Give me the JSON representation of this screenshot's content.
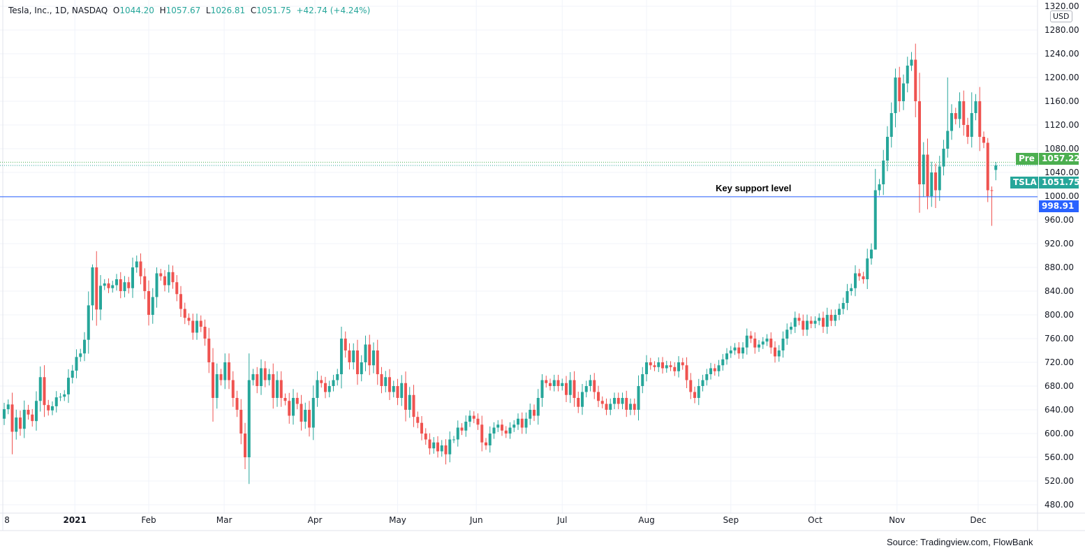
{
  "header": {
    "symbol": "Tesla, Inc., 1D, NASDAQ",
    "o_label": "O",
    "o": "1044.20",
    "h_label": "H",
    "h": "1057.67",
    "l_label": "L",
    "l": "1026.81",
    "c_label": "C",
    "c": "1051.75",
    "change": "+42.74 (+4.24%)"
  },
  "currency": "USD",
  "source": "Source: Tradingview.com, FlowBank",
  "annotation": "Key support level",
  "colors": {
    "up": "#26a69a",
    "down": "#ef5350",
    "support": "#2962ff",
    "pre": "#4caf50",
    "grid": "#f0f3fa"
  },
  "chart_data": {
    "type": "candlestick",
    "title": "Tesla, Inc., 1D, NASDAQ",
    "ylim": [
      460,
      1330
    ],
    "y_ticks": [
      "480.00",
      "520.00",
      "560.00",
      "600.00",
      "640.00",
      "680.00",
      "720.00",
      "760.00",
      "800.00",
      "840.00",
      "880.00",
      "920.00",
      "960.00",
      "1000.00",
      "1040.00",
      "1080.00",
      "1120.00",
      "1160.00",
      "1200.00",
      "1240.00",
      "1280.00",
      "1320.00"
    ],
    "x_ticks": [
      "8",
      "2021",
      "Feb",
      "Mar",
      "Apr",
      "May",
      "Jun",
      "Jul",
      "Aug",
      "Sep",
      "Oct",
      "Nov",
      "Dec"
    ],
    "close": [
      641,
      649,
      603,
      627,
      608,
      640,
      632,
      621,
      655,
      695,
      648,
      639,
      646,
      661,
      662,
      666,
      694,
      706,
      729,
      735,
      758,
      816,
      880,
      809,
      849,
      853,
      845,
      850,
      860,
      840,
      855,
      845,
      880,
      890,
      865,
      840,
      800,
      830,
      870,
      865,
      850,
      872,
      855,
      835,
      810,
      795,
      790,
      770,
      790,
      780,
      760,
      720,
      660,
      700,
      690,
      720,
      690,
      660,
      640,
      600,
      560,
      690,
      700,
      680,
      710,
      690,
      700,
      660,
      690,
      660,
      655,
      630,
      660,
      650,
      620,
      640,
      610,
      660,
      690,
      685,
      670,
      680,
      690,
      700,
      760,
      740,
      720,
      740,
      700,
      720,
      750,
      715,
      740,
      700,
      680,
      695,
      670,
      680,
      660,
      685,
      640,
      665,
      628,
      618,
      600,
      590,
      575,
      585,
      570,
      580,
      565,
      590,
      590,
      610,
      605,
      620,
      630,
      625,
      615,
      585,
      580,
      600,
      610,
      615,
      605,
      600,
      610,
      615,
      625,
      610,
      625,
      640,
      630,
      660,
      690,
      685,
      680,
      690,
      680,
      685,
      665,
      690,
      660,
      645,
      670,
      680,
      690,
      670,
      655,
      650,
      640,
      650,
      660,
      650,
      660,
      640,
      650,
      640,
      680,
      700,
      720,
      715,
      712,
      720,
      710,
      715,
      712,
      705,
      720,
      715,
      690,
      670,
      660,
      680,
      690,
      700,
      710,
      705,
      715,
      725,
      735,
      740,
      745,
      735,
      745,
      765,
      760,
      745,
      750,
      755,
      760,
      745,
      730,
      740,
      760,
      775,
      780,
      795,
      790,
      775,
      790,
      785,
      790,
      795,
      780,
      800,
      790,
      800,
      810,
      820,
      840,
      845,
      870,
      865,
      860,
      895,
      910,
      1010,
      1020,
      1060,
      1100,
      1140,
      1200,
      1160,
      1190,
      1220,
      1230,
      1160,
      1020,
      1070,
      1000,
      1040,
      1010,
      1050,
      1080,
      1110,
      1140,
      1130,
      1160,
      1120,
      1100,
      1140,
      1160,
      1100,
      1090,
      1010,
      1009.01,
      1051.75
    ],
    "first_open": 625,
    "last_candle": {
      "open": 1044.2,
      "high": 1057.67,
      "low": 1026.81,
      "close": 1051.75
    },
    "wick_high": {
      "22": 885,
      "33": 900,
      "38": 880,
      "84": 780,
      "134": 700,
      "226": 1243,
      "222": 1215,
      "235": 1200,
      "241": 1175,
      "245": 1098
    },
    "wick_low": {
      "60": 540,
      "2": 565,
      "110": 548,
      "217": 945,
      "230": 978,
      "232": 980,
      "245": 990,
      "246": 950,
      "52": 620
    },
    "price_lines": [
      {
        "label": "Pre",
        "value": "1057.22",
        "price": 1057.22
      },
      {
        "label": "TSLA",
        "value": "1051.75",
        "price": 1051.75
      },
      {
        "label": "",
        "value": "998.91",
        "price": 998.91
      }
    ]
  }
}
